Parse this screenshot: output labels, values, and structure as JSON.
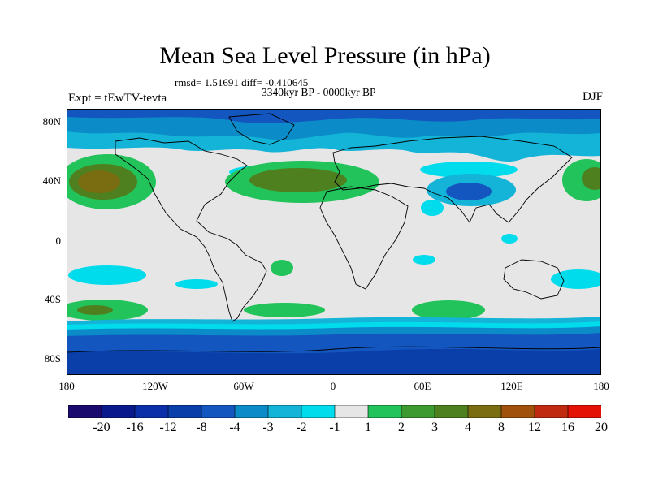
{
  "title": "Mean Sea Level Pressure (in hPa)",
  "stats": "rmsd= 1.51691 diff= -0.410645",
  "period": "3340kyr BP - 0000kyr BP",
  "experiment": "Expt = tEwTV-tevta",
  "season": "DJF",
  "y_ticks": [
    "80N",
    "40N",
    "0",
    "40S",
    "80S"
  ],
  "x_ticks": [
    "180",
    "120W",
    "60W",
    "0",
    "60E",
    "120E",
    "180"
  ],
  "colorbar": {
    "labels": [
      "-20",
      "-16",
      "-12",
      "-8",
      "-4",
      "-3",
      "-2",
      "-1",
      "1",
      "2",
      "3",
      "4",
      "8",
      "12",
      "16",
      "20"
    ],
    "colors": [
      "#1a0a6e",
      "#0a1a8c",
      "#0b2fa8",
      "#0a3ea8",
      "#1456c0",
      "#0b8cc8",
      "#14b4d8",
      "#00dcec",
      "#e6e6e6",
      "#22c35a",
      "#3c9a30",
      "#4e8020",
      "#7a6c10",
      "#a0520c",
      "#c02a10",
      "#e41206"
    ]
  },
  "colors": {
    "neutral": "#e6e6e6",
    "light_cyan": "#00dcec",
    "cyan": "#14b4d8",
    "mid_blue": "#0b8cc8",
    "blue": "#1456c0",
    "dark_blue": "#0a3ea8",
    "green": "#22c35a",
    "dark_green": "#3c9a30",
    "olive": "#4e8020",
    "brown": "#7a6c10"
  }
}
